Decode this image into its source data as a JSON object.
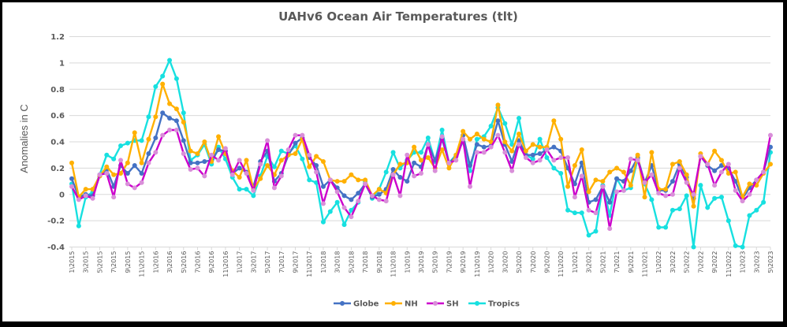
{
  "chart_data": {
    "type": "line",
    "title": "UAHv6 Ocean Air Temperatures (tlt)",
    "xlabel": "",
    "ylabel": "Anomalies in C",
    "ylim": [
      -0.4,
      1.2
    ],
    "yticks": [
      "1.2",
      "1",
      "0.8",
      "0.6",
      "0.4",
      "0.2",
      "0",
      "-0.2",
      "-0.4"
    ],
    "ytick_values": [
      1.2,
      1.0,
      0.8,
      0.6,
      0.4,
      0.2,
      0,
      -0.2,
      -0.4
    ],
    "grid": true,
    "legend_position": "bottom",
    "x_start": {
      "month": 1,
      "year": 2015
    },
    "x_count": 101,
    "x_label_every": 2,
    "series": [
      {
        "name": "Globe",
        "color": "#4472C4",
        "values": [
          0.12,
          -0.02,
          0.0,
          -0.01,
          0.14,
          0.19,
          0.06,
          0.22,
          0.16,
          0.22,
          0.16,
          0.31,
          0.43,
          0.62,
          0.58,
          0.56,
          0.41,
          0.24,
          0.24,
          0.25,
          0.26,
          0.34,
          0.33,
          0.16,
          0.2,
          0.17,
          0.06,
          0.25,
          0.33,
          0.1,
          0.16,
          0.3,
          0.39,
          0.43,
          0.28,
          0.22,
          0.06,
          0.11,
          0.05,
          -0.01,
          -0.04,
          0.01,
          0.08,
          -0.02,
          0.0,
          0.04,
          0.19,
          0.13,
          0.1,
          0.24,
          0.21,
          0.38,
          0.26,
          0.42,
          0.24,
          0.29,
          0.45,
          0.22,
          0.38,
          0.36,
          0.37,
          0.56,
          0.38,
          0.25,
          0.41,
          0.3,
          0.3,
          0.31,
          0.34,
          0.36,
          0.33,
          0.2,
          0.08,
          0.24,
          -0.06,
          -0.04,
          0.06,
          -0.06,
          0.12,
          0.1,
          0.18,
          0.28,
          0.09,
          0.22,
          0.03,
          0.03,
          0.1,
          0.23,
          0.13,
          -0.03,
          0.29,
          0.22,
          0.18,
          0.22,
          0.2,
          0.1,
          -0.03,
          0.05,
          0.11,
          0.17,
          0.36
        ]
      },
      {
        "name": "NH",
        "color": "#FFB000",
        "values": [
          0.24,
          -0.02,
          0.04,
          0.04,
          0.14,
          0.21,
          0.15,
          0.16,
          0.24,
          0.47,
          0.24,
          0.42,
          0.59,
          0.84,
          0.69,
          0.65,
          0.55,
          0.33,
          0.31,
          0.4,
          0.25,
          0.44,
          0.31,
          0.18,
          0.13,
          0.26,
          0.04,
          0.12,
          0.22,
          0.15,
          0.26,
          0.3,
          0.31,
          0.42,
          0.21,
          0.29,
          0.25,
          0.11,
          0.1,
          0.1,
          0.15,
          0.11,
          0.11,
          -0.01,
          0.04,
          0.01,
          0.15,
          0.23,
          0.24,
          0.36,
          0.26,
          0.28,
          0.2,
          0.34,
          0.2,
          0.3,
          0.48,
          0.42,
          0.46,
          0.42,
          0.4,
          0.68,
          0.4,
          0.33,
          0.46,
          0.33,
          0.38,
          0.36,
          0.36,
          0.56,
          0.42,
          0.06,
          0.22,
          0.34,
          0.02,
          0.11,
          0.1,
          0.17,
          0.2,
          0.17,
          0.07,
          0.3,
          -0.02,
          0.32,
          0.04,
          0.04,
          0.23,
          0.25,
          0.15,
          -0.09,
          0.31,
          0.23,
          0.33,
          0.26,
          0.16,
          0.17,
          -0.02,
          0.08,
          0.07,
          0.16,
          0.23
        ]
      },
      {
        "name": "SH",
        "color": "#CC00CC",
        "values": [
          0.06,
          -0.04,
          -0.01,
          -0.03,
          0.15,
          0.16,
          -0.02,
          0.26,
          0.08,
          0.05,
          0.09,
          0.24,
          0.32,
          0.45,
          0.49,
          0.49,
          0.31,
          0.19,
          0.2,
          0.14,
          0.3,
          0.26,
          0.35,
          0.15,
          0.26,
          0.16,
          0.03,
          0.23,
          0.41,
          0.05,
          0.14,
          0.34,
          0.45,
          0.45,
          0.3,
          0.17,
          -0.07,
          0.11,
          0.02,
          -0.1,
          -0.17,
          -0.05,
          0.08,
          -0.01,
          -0.04,
          -0.05,
          0.15,
          -0.01,
          0.3,
          0.14,
          0.16,
          0.38,
          0.18,
          0.44,
          0.24,
          0.26,
          0.42,
          0.06,
          0.32,
          0.32,
          0.36,
          0.45,
          0.32,
          0.18,
          0.38,
          0.28,
          0.24,
          0.26,
          0.34,
          0.26,
          0.28,
          0.28,
          -0.02,
          0.14,
          -0.12,
          -0.14,
          0.06,
          -0.26,
          0.02,
          0.03,
          0.27,
          0.26,
          0.09,
          0.15,
          0.01,
          -0.01,
          0.0,
          0.2,
          0.09,
          0.0,
          0.29,
          0.23,
          0.07,
          0.17,
          0.23,
          0.03,
          -0.05,
          0.0,
          0.11,
          0.17,
          0.45
        ]
      },
      {
        "name": "Tropics",
        "color": "#17E0E0",
        "values": [
          0.08,
          -0.24,
          -0.02,
          0.02,
          0.15,
          0.3,
          0.27,
          0.37,
          0.39,
          0.41,
          0.41,
          0.59,
          0.82,
          0.9,
          1.02,
          0.88,
          0.62,
          0.26,
          0.3,
          0.38,
          0.23,
          0.36,
          0.27,
          0.13,
          0.04,
          0.04,
          -0.01,
          0.14,
          0.29,
          0.21,
          0.33,
          0.31,
          0.37,
          0.27,
          0.11,
          0.09,
          -0.21,
          -0.13,
          -0.06,
          -0.23,
          -0.12,
          -0.06,
          0.1,
          -0.03,
          0.04,
          0.17,
          0.32,
          0.2,
          0.26,
          0.32,
          0.32,
          0.43,
          0.25,
          0.49,
          0.24,
          0.3,
          0.4,
          0.18,
          0.42,
          0.44,
          0.52,
          0.66,
          0.54,
          0.38,
          0.58,
          0.3,
          0.27,
          0.42,
          0.28,
          0.2,
          0.16,
          -0.12,
          -0.14,
          -0.14,
          -0.31,
          -0.28,
          0.07,
          -0.16,
          0.12,
          0.03,
          0.05,
          0.27,
          0.08,
          -0.04,
          -0.25,
          -0.25,
          -0.12,
          -0.11,
          -0.01,
          -0.4,
          0.07,
          -0.1,
          -0.03,
          -0.02,
          -0.2,
          -0.39,
          -0.4,
          -0.16,
          -0.12,
          -0.06,
          0.32
        ]
      }
    ]
  }
}
